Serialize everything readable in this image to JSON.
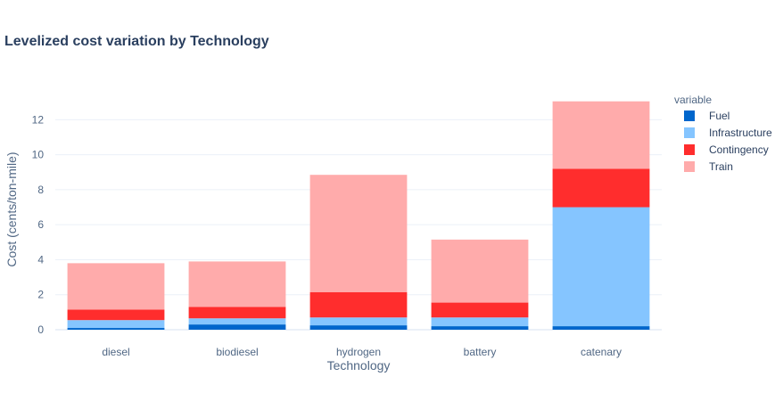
{
  "chart_data": {
    "type": "bar",
    "stacked": true,
    "title": "Levelized cost variation by Technology",
    "xlabel": "Technology",
    "ylabel": "Cost (cents/ton-mile)",
    "ylim": [
      0,
      13.8
    ],
    "yticks": [
      0,
      2,
      4,
      6,
      8,
      10,
      12
    ],
    "grid": true,
    "legend": {
      "title": "variable",
      "placement": "right"
    },
    "categories": [
      "diesel",
      "biodiesel",
      "hydrogen",
      "battery",
      "catenary"
    ],
    "series": [
      {
        "name": "Fuel",
        "color": "#0066cc",
        "values": [
          0.1,
          0.3,
          0.25,
          0.2,
          0.2
        ]
      },
      {
        "name": "Infrastructure",
        "color": "#85c5ff",
        "values": [
          0.45,
          0.35,
          0.45,
          0.5,
          6.8
        ]
      },
      {
        "name": "Contingency",
        "color": "#ff2d2d",
        "values": [
          0.6,
          0.65,
          1.45,
          0.85,
          2.2
        ]
      },
      {
        "name": "Train",
        "color": "#ffabab",
        "values": [
          2.65,
          2.6,
          6.7,
          3.6,
          3.85
        ]
      }
    ]
  }
}
